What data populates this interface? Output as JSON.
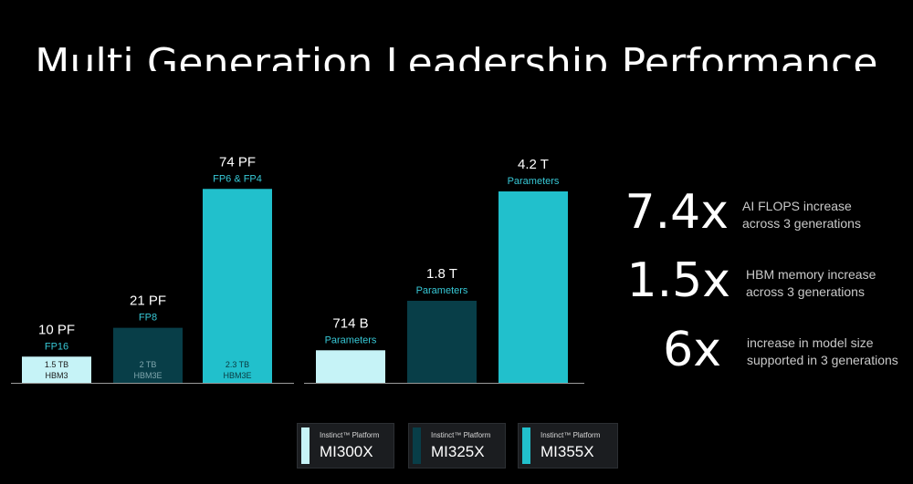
{
  "title": "Multi Generation Leadership Performance",
  "colors": {
    "mi300x": "#c6f3f7",
    "mi325x": "#083e48",
    "mi355x": "#21c0cc",
    "accent_text": "#37c8d6",
    "axis": "#9a9a9a"
  },
  "chart_data": [
    {
      "type": "bar",
      "title": "",
      "categories": [
        "MI300X",
        "MI325X",
        "MI355X"
      ],
      "values": [
        10,
        21,
        74
      ],
      "value_labels": [
        "10 PF",
        "21 PF",
        "74 PF"
      ],
      "precision_labels": [
        "FP16",
        "FP8",
        "FP6 & FP4"
      ],
      "memory_labels": [
        [
          "1.5 TB",
          "HBM3"
        ],
        [
          "2 TB",
          "HBM3E"
        ],
        [
          "2.3 TB",
          "HBM3E"
        ]
      ],
      "ylim": [
        0,
        80
      ],
      "grid": false
    },
    {
      "type": "bar",
      "title": "",
      "categories": [
        "MI300X",
        "MI325X",
        "MI355X"
      ],
      "values": [
        714,
        1800,
        4200
      ],
      "value_labels": [
        "714 B",
        "1.8 T",
        "4.2 T"
      ],
      "sub_labels": [
        "Parameters",
        "Parameters",
        "Parameters"
      ],
      "ylim": [
        0,
        4500
      ],
      "grid": false
    }
  ],
  "stats": [
    {
      "value": "7.4x",
      "line1": "AI FLOPS increase",
      "line2": "across 3 generations"
    },
    {
      "value": "1.5x",
      "line1": "HBM memory increase",
      "line2": "across 3 generations"
    },
    {
      "value": "6x",
      "line1": "increase in model size",
      "line2": "supported in 3 generations"
    }
  ],
  "legend": [
    {
      "sub": "Instinct™ Platform",
      "name": "MI300X",
      "color": "#c6f3f7"
    },
    {
      "sub": "Instinct™ Platform",
      "name": "MI325X",
      "color": "#083e48"
    },
    {
      "sub": "Instinct™ Platform",
      "name": "MI355X",
      "color": "#21c0cc"
    }
  ]
}
